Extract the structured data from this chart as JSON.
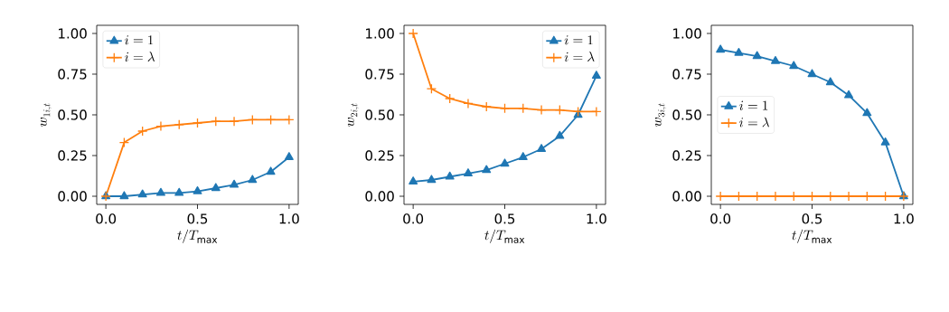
{
  "chart_data": [
    {
      "type": "line",
      "xlabel": "t/T_{\\mathrm{max}}",
      "ylabel": "w_{1i,t}",
      "legend": "top left",
      "xlim": [
        -0.05,
        1.05
      ],
      "ylim": [
        -0.05,
        1.05
      ],
      "xticks": [
        {
          "value": 0,
          "label": "0.0"
        },
        {
          "value": 0.5,
          "label": "0.5"
        },
        {
          "value": 1,
          "label": "1.0"
        }
      ],
      "yticks": [
        {
          "value": 0,
          "label": "0.00"
        },
        {
          "value": 0.25,
          "label": "0.25"
        },
        {
          "value": 0.5,
          "label": "0.50"
        },
        {
          "value": 0.75,
          "label": "0.75"
        },
        {
          "value": 1,
          "label": "1.00"
        }
      ],
      "x": [
        0,
        0.1,
        0.2,
        0.3,
        0.4,
        0.5,
        0.6,
        0.7,
        0.8,
        0.9,
        1.0
      ],
      "series": [
        {
          "name": "i=1",
          "color": "#1f77b4",
          "marker": "triangle",
          "values": [
            0.0,
            0.0,
            0.01,
            0.02,
            0.02,
            0.03,
            0.05,
            0.07,
            0.1,
            0.15,
            0.24
          ]
        },
        {
          "name": "i=\\lambda",
          "color": "#ff7f0e",
          "marker": "cross",
          "values": [
            0.0,
            0.33,
            0.4,
            0.43,
            0.44,
            0.45,
            0.46,
            0.46,
            0.47,
            0.47,
            0.47
          ]
        }
      ]
    },
    {
      "type": "line",
      "xlabel": "t/T_{\\mathrm{max}}",
      "ylabel": "w_{2i,t}",
      "legend": "top right",
      "xlim": [
        -0.05,
        1.05
      ],
      "ylim": [
        -0.05,
        1.05
      ],
      "xticks": [
        {
          "value": 0,
          "label": "0.0"
        },
        {
          "value": 0.5,
          "label": "0.5"
        },
        {
          "value": 1,
          "label": "1.0"
        }
      ],
      "yticks": [
        {
          "value": 0,
          "label": "0.00"
        },
        {
          "value": 0.25,
          "label": "0.25"
        },
        {
          "value": 0.5,
          "label": "0.50"
        },
        {
          "value": 0.75,
          "label": "0.75"
        },
        {
          "value": 1,
          "label": "1.00"
        }
      ],
      "x": [
        0,
        0.1,
        0.2,
        0.3,
        0.4,
        0.5,
        0.6,
        0.7,
        0.8,
        0.9,
        1.0
      ],
      "series": [
        {
          "name": "i=1",
          "color": "#1f77b4",
          "marker": "triangle",
          "values": [
            0.09,
            0.1,
            0.12,
            0.14,
            0.16,
            0.2,
            0.24,
            0.29,
            0.37,
            0.5,
            0.74
          ]
        },
        {
          "name": "i=\\lambda",
          "color": "#ff7f0e",
          "marker": "cross",
          "values": [
            1.0,
            0.66,
            0.6,
            0.57,
            0.55,
            0.54,
            0.54,
            0.53,
            0.53,
            0.52,
            0.52
          ]
        }
      ]
    },
    {
      "type": "line",
      "xlabel": "t/T_{\\mathrm{max}}",
      "ylabel": "w_{3i,t}",
      "legend": "center left",
      "xlim": [
        -0.05,
        1.05
      ],
      "ylim": [
        -0.05,
        1.05
      ],
      "xticks": [
        {
          "value": 0,
          "label": "0.0"
        },
        {
          "value": 0.5,
          "label": "0.5"
        },
        {
          "value": 1,
          "label": "1.0"
        }
      ],
      "yticks": [
        {
          "value": 0,
          "label": "0.00"
        },
        {
          "value": 0.25,
          "label": "0.25"
        },
        {
          "value": 0.5,
          "label": "0.50"
        },
        {
          "value": 0.75,
          "label": "0.75"
        },
        {
          "value": 1,
          "label": "1.00"
        }
      ],
      "x": [
        0,
        0.1,
        0.2,
        0.3,
        0.4,
        0.5,
        0.6,
        0.7,
        0.8,
        0.9,
        1.0
      ],
      "series": [
        {
          "name": "i=1",
          "color": "#1f77b4",
          "marker": "triangle",
          "values": [
            0.9,
            0.88,
            0.86,
            0.83,
            0.8,
            0.75,
            0.7,
            0.62,
            0.51,
            0.33,
            0.0
          ]
        },
        {
          "name": "i=\\lambda",
          "color": "#ff7f0e",
          "marker": "cross",
          "values": [
            0.0,
            0.0,
            0.0,
            0.0,
            0.0,
            0.0,
            0.0,
            0.0,
            0.0,
            0.0,
            0.0
          ]
        }
      ]
    }
  ]
}
